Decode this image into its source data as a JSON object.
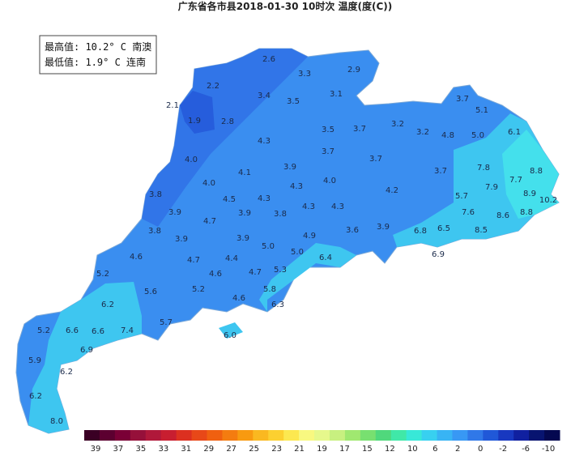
{
  "title": "广东省各市县2018-01-30 10时次 温度(度(C))",
  "info": {
    "max": "最高值: 10.2° C 南澳",
    "min": "最低值: 1.9° C 连南"
  },
  "labels": [
    "2.6",
    "3.3",
    "2.9",
    "2.2",
    "3.4",
    "3.5",
    "3.1",
    "3.7",
    "5.1",
    "2.1",
    "1.9",
    "2.8",
    "3.5",
    "3.7",
    "3.2",
    "3.2",
    "4.8",
    "5.0",
    "6.1",
    "4.3",
    "3.7",
    "4.0",
    "3.7",
    "7.8",
    "8.8",
    "4.1",
    "3.9",
    "4.3",
    "4.0",
    "3.7",
    "7.7",
    "4.0",
    "7.9",
    "8.9",
    "3.8",
    "4.5",
    "4.3",
    "4.2",
    "5.7",
    "10.2",
    "3.9",
    "3.9",
    "3.8",
    "4.3",
    "4.3",
    "7.6",
    "8.6",
    "8.8",
    "4.7",
    "3.8",
    "3.9",
    "3.9",
    "4.9",
    "3.6",
    "3.9",
    "6.8",
    "6.5",
    "8.5",
    "5.0",
    "5.0",
    "6.9",
    "4.6",
    "4.7",
    "4.4",
    "6.4",
    "5.2",
    "4.6",
    "4.7",
    "5.3",
    "5.6",
    "5.2",
    "5.8",
    "4.6",
    "6.2",
    "6.3",
    "5.7",
    "5.2",
    "6.6",
    "6.6",
    "7.4",
    "6.0",
    "6.9",
    "5.9",
    "6.2",
    "6.2",
    "8.0"
  ],
  "legend": {
    "labels": [
      "39",
      "37",
      "35",
      "33",
      "31",
      "29",
      "27",
      "25",
      "23",
      "21",
      "19",
      "17",
      "15",
      "12",
      "10",
      "6",
      "2",
      "0",
      "-2",
      "-6",
      "-10"
    ],
    "colors": [
      "#3a0024",
      "#5c0030",
      "#7a0036",
      "#96103a",
      "#b0183a",
      "#c81e30",
      "#dc3020",
      "#e84818",
      "#f06010",
      "#f47c10",
      "#f89a10",
      "#fab820",
      "#fcd030",
      "#fce850",
      "#f8f880",
      "#e6f88c",
      "#c8f080",
      "#a0e870",
      "#78e070",
      "#50d87c",
      "#40e8a8",
      "#38e8d8",
      "#38d0f0",
      "#38b4f4",
      "#3898f4",
      "#3078e8",
      "#2058d8",
      "#1838c0",
      "#1020a0",
      "#081470",
      "#040850"
    ]
  }
}
